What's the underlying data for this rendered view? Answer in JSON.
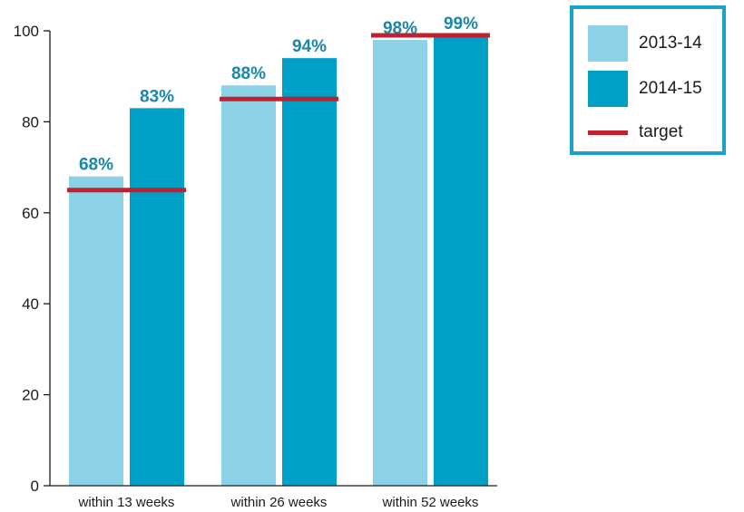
{
  "chart_data": {
    "type": "bar",
    "categories": [
      "within 13 weeks",
      "within 26 weeks",
      "within 52 weeks"
    ],
    "series": [
      {
        "name": "2013-14",
        "values": [
          68,
          88,
          98
        ],
        "color": "#8dd1e6",
        "labels": [
          "68%",
          "88%",
          "98%"
        ]
      },
      {
        "name": "2014-15",
        "values": [
          83,
          94,
          99
        ],
        "color": "#00a0c6",
        "labels": [
          "83%",
          "94%",
          "99%"
        ]
      }
    ],
    "target": {
      "name": "target",
      "values": [
        65,
        85,
        99
      ],
      "color": "#c0202f"
    },
    "ylim": [
      0,
      100
    ],
    "yticks": [
      "0",
      "20",
      "40",
      "60",
      "80",
      "100"
    ],
    "label_color": "#1a86a8",
    "grid": false,
    "legend_position": "top-right"
  }
}
